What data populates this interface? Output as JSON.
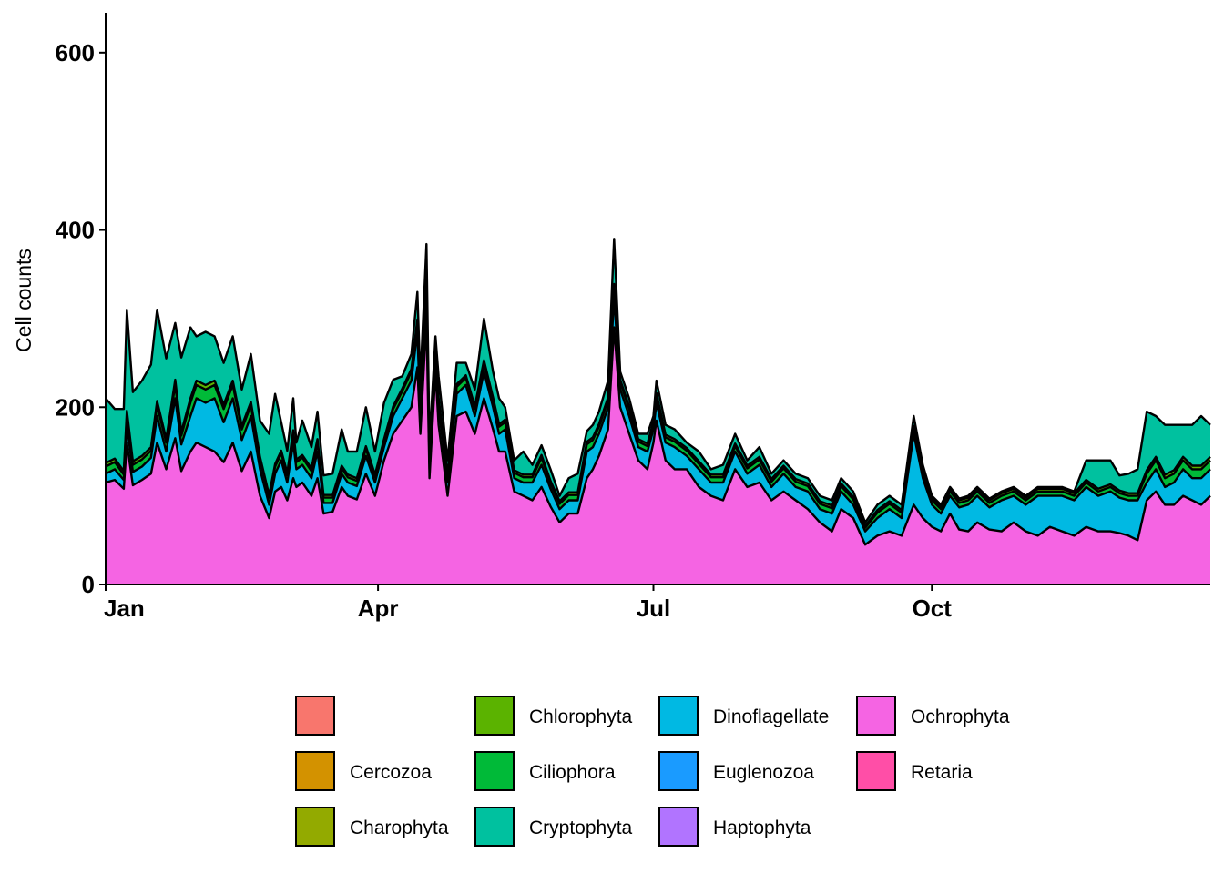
{
  "chart_data": {
    "type": "area",
    "stacked": true,
    "title": "",
    "xlabel": "",
    "ylabel": "Cell counts",
    "ylim": [
      0,
      645
    ],
    "y_ticks": [
      0,
      200,
      400,
      600
    ],
    "x_range_days": [
      0,
      365
    ],
    "x_ticks": [
      {
        "label": "Jan",
        "day": 0
      },
      {
        "label": "Apr",
        "day": 90
      },
      {
        "label": "Jul",
        "day": 181
      },
      {
        "label": "Oct",
        "day": 273
      }
    ],
    "grid": false,
    "legend_position": "bottom",
    "legend": [
      {
        "name": "",
        "color": "#F8766D"
      },
      {
        "name": "Cercozoa",
        "color": "#D39200"
      },
      {
        "name": "Charophyta",
        "color": "#93AA00"
      },
      {
        "name": "Chlorophyta",
        "color": "#5BB300"
      },
      {
        "name": "Ciliophora",
        "color": "#00BA38"
      },
      {
        "name": "Cryptophyta",
        "color": "#00C19F"
      },
      {
        "name": "Dinoflagellate",
        "color": "#00B9E3"
      },
      {
        "name": "Euglenozoa",
        "color": "#1A9BFF"
      },
      {
        "name": "Haptophyta",
        "color": "#B174FF"
      },
      {
        "name": "Ochrophyta",
        "color": "#F564E3"
      },
      {
        "name": "Retaria",
        "color": "#FF4EA7"
      }
    ],
    "stack_order_bottom_to_top": [
      "Ochrophyta",
      "Dinoflagellate",
      "Ciliophora",
      "Chlorophyta",
      "Cryptophyta"
    ],
    "series_day": [
      0,
      3,
      6,
      7,
      9,
      12,
      15,
      17,
      20,
      23,
      25,
      28,
      30,
      33,
      36,
      39,
      42,
      45,
      48,
      51,
      54,
      56,
      58,
      60,
      62,
      63,
      65,
      68,
      70,
      72,
      75,
      78,
      80,
      83,
      86,
      89,
      92,
      95,
      98,
      101,
      103,
      104,
      106,
      107,
      109,
      110,
      113,
      116,
      119,
      122,
      125,
      128,
      130,
      132,
      135,
      138,
      141,
      144,
      147,
      150,
      153,
      156,
      159,
      161,
      163,
      166,
      168,
      170,
      173,
      176,
      179,
      181,
      182,
      185,
      188,
      192,
      196,
      200,
      204,
      208,
      212,
      216,
      220,
      224,
      228,
      232,
      236,
      240,
      243,
      247,
      251,
      255,
      259,
      263,
      267,
      270,
      273,
      276,
      279,
      282,
      285,
      288,
      292,
      296,
      300,
      304,
      308,
      312,
      316,
      320,
      324,
      328,
      332,
      335,
      338,
      341,
      344,
      347,
      350,
      353,
      356,
      359,
      362,
      365
    ],
    "series": [
      {
        "name": "Ochrophyta",
        "values": [
          115,
          118,
          108,
          160,
          112,
          118,
          125,
          160,
          130,
          165,
          128,
          150,
          160,
          155,
          150,
          138,
          160,
          128,
          150,
          100,
          75,
          105,
          110,
          95,
          120,
          110,
          115,
          100,
          120,
          80,
          82,
          110,
          100,
          96,
          125,
          100,
          140,
          170,
          185,
          200,
          245,
          170,
          300,
          120,
          240,
          180,
          100,
          190,
          195,
          170,
          210,
          175,
          150,
          150,
          105,
          100,
          95,
          110,
          88,
          70,
          80,
          80,
          120,
          130,
          145,
          175,
          290,
          200,
          170,
          140,
          130,
          160,
          185,
          140,
          130,
          130,
          110,
          100,
          95,
          130,
          110,
          115,
          95,
          105,
          95,
          85,
          70,
          60,
          85,
          75,
          45,
          55,
          60,
          55,
          90,
          75,
          65,
          60,
          80,
          62,
          60,
          70,
          62,
          60,
          70,
          60,
          55,
          65,
          60,
          55,
          65,
          60,
          60,
          58,
          55,
          50,
          95,
          105,
          90,
          90,
          100,
          95,
          90,
          100
        ]
      },
      {
        "name": "Dinoflagellate",
        "values": [
          10,
          12,
          10,
          20,
          15,
          15,
          18,
          30,
          20,
          45,
          30,
          40,
          50,
          50,
          60,
          45,
          50,
          35,
          40,
          30,
          15,
          20,
          30,
          20,
          40,
          20,
          20,
          20,
          30,
          12,
          10,
          15,
          15,
          15,
          20,
          15,
          15,
          20,
          25,
          30,
          40,
          20,
          40,
          10,
          15,
          20,
          15,
          25,
          30,
          20,
          30,
          25,
          20,
          25,
          15,
          15,
          20,
          25,
          20,
          15,
          15,
          15,
          30,
          25,
          25,
          25,
          35,
          20,
          20,
          15,
          20,
          15,
          20,
          20,
          25,
          15,
          20,
          15,
          20,
          20,
          15,
          20,
          15,
          20,
          15,
          20,
          15,
          20,
          20,
          15,
          15,
          20,
          25,
          20,
          80,
          45,
          25,
          20,
          20,
          25,
          30,
          30,
          25,
          35,
          30,
          30,
          45,
          35,
          40,
          40,
          45,
          40,
          45,
          40,
          40,
          45,
          20,
          25,
          20,
          25,
          30,
          25,
          30,
          30
        ]
      },
      {
        "name": "Ciliophora",
        "values": [
          8,
          8,
          6,
          10,
          8,
          8,
          8,
          12,
          10,
          15,
          10,
          15,
          15,
          15,
          15,
          15,
          15,
          12,
          12,
          10,
          8,
          8,
          8,
          8,
          10,
          8,
          8,
          8,
          10,
          6,
          6,
          6,
          6,
          6,
          8,
          6,
          6,
          8,
          8,
          10,
          10,
          8,
          10,
          6,
          8,
          8,
          6,
          8,
          8,
          8,
          10,
          8,
          8,
          8,
          6,
          6,
          6,
          8,
          6,
          6,
          6,
          6,
          8,
          8,
          8,
          8,
          10,
          8,
          8,
          6,
          6,
          6,
          8,
          6,
          6,
          6,
          6,
          6,
          6,
          6,
          6,
          6,
          6,
          6,
          6,
          6,
          6,
          6,
          6,
          6,
          4,
          6,
          6,
          6,
          6,
          6,
          5,
          5,
          5,
          5,
          5,
          5,
          5,
          5,
          5,
          5,
          5,
          5,
          5,
          5,
          5,
          5,
          5,
          5,
          5,
          5,
          10,
          10,
          10,
          10,
          10,
          10,
          10,
          10
        ]
      },
      {
        "name": "Chlorophyta",
        "values": [
          4,
          4,
          4,
          6,
          4,
          4,
          4,
          5,
          4,
          6,
          4,
          5,
          5,
          5,
          5,
          5,
          5,
          4,
          4,
          4,
          3,
          3,
          3,
          3,
          4,
          3,
          3,
          3,
          4,
          3,
          3,
          3,
          3,
          3,
          3,
          3,
          3,
          3,
          3,
          3,
          4,
          3,
          4,
          3,
          3,
          3,
          3,
          3,
          3,
          3,
          3,
          3,
          3,
          3,
          3,
          3,
          3,
          3,
          3,
          3,
          3,
          3,
          3,
          3,
          3,
          3,
          4,
          3,
          3,
          3,
          3,
          3,
          3,
          3,
          3,
          3,
          3,
          3,
          3,
          3,
          3,
          3,
          3,
          3,
          3,
          3,
          3,
          3,
          3,
          3,
          2,
          3,
          3,
          3,
          3,
          3,
          3,
          3,
          3,
          3,
          3,
          3,
          3,
          3,
          3,
          3,
          3,
          3,
          3,
          3,
          3,
          3,
          3,
          3,
          3,
          3,
          4,
          4,
          4,
          4,
          4,
          4,
          4,
          4
        ]
      },
      {
        "name": "Cryptophyta",
        "values": [
          73,
          56,
          70,
          114,
          78,
          85,
          93,
          103,
          91,
          64,
          84,
          80,
          50,
          60,
          50,
          47,
          50,
          41,
          54,
          41,
          69,
          79,
          32,
          25,
          36,
          19,
          39,
          24,
          31,
          22,
          24,
          41,
          26,
          30,
          44,
          26,
          41,
          30,
          14,
          17,
          31,
          29,
          30,
          21,
          14,
          24,
          16,
          24,
          14,
          19,
          47,
          29,
          29,
          14,
          11,
          26,
          11,
          11,
          13,
          6,
          16,
          21,
          12,
          14,
          14,
          19,
          51,
          9,
          9,
          6,
          11,
          6,
          14,
          11,
          11,
          6,
          11,
          6,
          11,
          11,
          6,
          11,
          6,
          6,
          6,
          6,
          6,
          6,
          6,
          6,
          4,
          6,
          6,
          6,
          11,
          6,
          2,
          2,
          2,
          2,
          2,
          2,
          2,
          2,
          2,
          2,
          2,
          2,
          2,
          2,
          22,
          32,
          27,
          17,
          22,
          27,
          66,
          46,
          56,
          51,
          36,
          46,
          56,
          36
        ]
      }
    ]
  }
}
